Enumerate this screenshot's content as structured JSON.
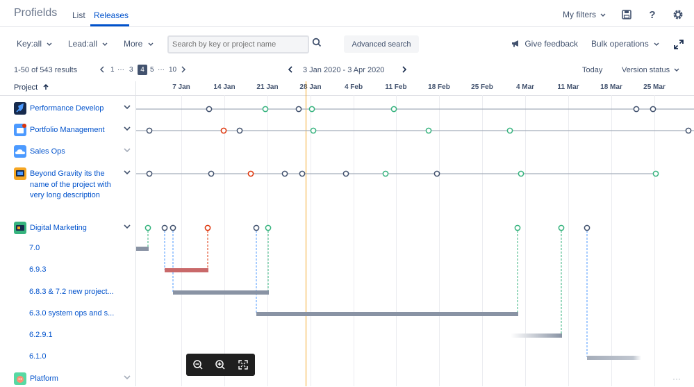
{
  "app": {
    "title": "Profields"
  },
  "nav": {
    "tabs": [
      {
        "label": "List"
      },
      {
        "label": "Releases"
      }
    ]
  },
  "topright": {
    "my_filters": "My filters"
  },
  "toolbar": {
    "key_filter": "Key:all",
    "lead_filter": "Lead:all",
    "more": "More",
    "search_placeholder": "Search by key or project name",
    "advanced_search": "Advanced search",
    "give_feedback": "Give feedback",
    "bulk_operations": "Bulk operations"
  },
  "pagination": {
    "results": "1-50 of 543 results",
    "pages": [
      "1",
      "···",
      "3",
      "4",
      "5",
      "···",
      "10"
    ],
    "current": "4"
  },
  "timeline": {
    "range": "3 Jan 2020 - 3 Apr 2020",
    "today": "Today",
    "version_status": "Version status",
    "column_header": "Project",
    "dates": [
      "7 Jan",
      "14 Jan",
      "21 Jan",
      "28 Jan",
      "4 Feb",
      "11 Feb",
      "18 Feb",
      "25 Feb",
      "4 Mar",
      "11 Mar",
      "18 Mar",
      "25 Mar"
    ]
  },
  "projects": [
    {
      "name": "Performance Develop",
      "icon": "rocket-icon",
      "color": "#172b4d"
    },
    {
      "name": "Portfolio Management",
      "icon": "portfolio-icon",
      "color": "#4c9aff"
    },
    {
      "name": "Sales Ops",
      "icon": "cloud-icon",
      "color": "#4c9aff"
    },
    {
      "name": "Beyond Gravity its the name of the project with very long description",
      "icon": "monitor-icon",
      "color": "#f5a623"
    },
    {
      "name": "Digital Marketing",
      "icon": "laptop-icon",
      "color": "#36b37e"
    },
    {
      "name": "Platform",
      "icon": "robot-icon",
      "color": "#57d9a3"
    }
  ],
  "versions": [
    {
      "name": "7.0"
    },
    {
      "name": "6.9.3"
    },
    {
      "name": "6.8.3 & 7.2 new project..."
    },
    {
      "name": "6.3.0 system ops and s..."
    },
    {
      "name": "6.2.9.1"
    },
    {
      "name": "6.1.0"
    }
  ],
  "colors": {
    "released": "#36b37e",
    "unreleased": "#42526e",
    "overdue": "#de350b",
    "today_line": "#f5a623",
    "link": "#0052cc"
  }
}
